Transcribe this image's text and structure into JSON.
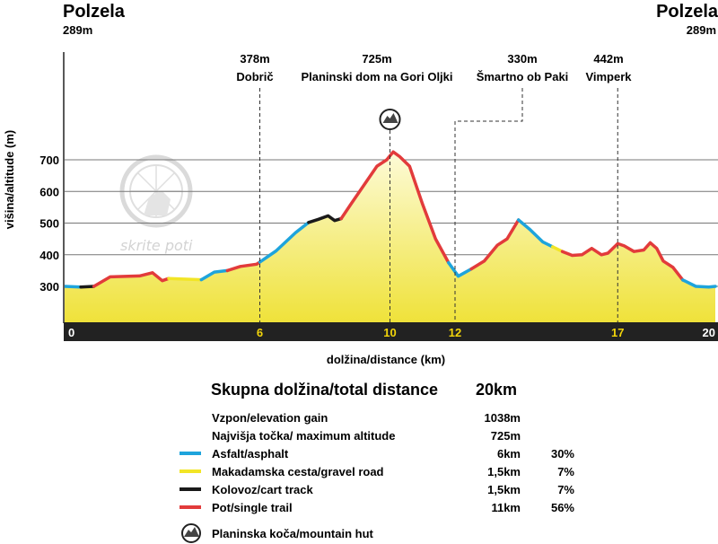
{
  "start": {
    "name": "Polzela",
    "altitude_label": "289m"
  },
  "end": {
    "name": "Polzela",
    "altitude_label": "289m"
  },
  "waypoints": [
    {
      "altitude_label": "378m",
      "name": "Dobrič",
      "km": 6
    },
    {
      "altitude_label": "725m",
      "name": "Planinski dom na Gori Oljki",
      "km": 10,
      "hut": true
    },
    {
      "altitude_label": "330m",
      "name": "Šmartno ob Paki",
      "km": 12
    },
    {
      "altitude_label": "442m",
      "name": "Vimperk",
      "km": 17
    }
  ],
  "logo": {
    "text": "skrite poti"
  },
  "chart_data": {
    "type": "area",
    "xlabel": "dolžina/distance (km)",
    "ylabel": "višina/altitude (m)",
    "xlim": [
      0,
      20
    ],
    "ylim": [
      150,
      1020
    ],
    "yticks": [
      300,
      400,
      500,
      600,
      700
    ],
    "xticks": [
      {
        "value": 0,
        "label": "0",
        "color": "#ffffff"
      },
      {
        "value": 6,
        "label": "6",
        "color": "#f2d40a"
      },
      {
        "value": 10,
        "label": "10",
        "color": "#f2d40a"
      },
      {
        "value": 12,
        "label": "12",
        "color": "#f2d40a"
      },
      {
        "value": 17,
        "label": "17",
        "color": "#f2d40a"
      },
      {
        "value": 20,
        "label": "20",
        "color": "#ffffff"
      }
    ],
    "profile": [
      [
        0,
        300
      ],
      [
        0.5,
        298
      ],
      [
        0.9,
        300
      ],
      [
        1.4,
        330
      ],
      [
        2.3,
        333
      ],
      [
        2.7,
        343
      ],
      [
        3.0,
        318
      ],
      [
        3.2,
        325
      ],
      [
        4.2,
        321
      ],
      [
        4.6,
        345
      ],
      [
        5.0,
        350
      ],
      [
        5.4,
        363
      ],
      [
        5.9,
        370
      ],
      [
        6.5,
        412
      ],
      [
        7.1,
        470
      ],
      [
        7.5,
        502
      ],
      [
        7.8,
        512
      ],
      [
        8.1,
        523
      ],
      [
        8.3,
        508
      ],
      [
        8.5,
        514
      ],
      [
        8.8,
        560
      ],
      [
        9.2,
        620
      ],
      [
        9.6,
        680
      ],
      [
        9.9,
        700
      ],
      [
        10.1,
        725
      ],
      [
        10.3,
        710
      ],
      [
        10.6,
        680
      ],
      [
        11.0,
        560
      ],
      [
        11.4,
        450
      ],
      [
        11.8,
        375
      ],
      [
        12.1,
        332
      ],
      [
        12.5,
        355
      ],
      [
        12.9,
        380
      ],
      [
        13.3,
        430
      ],
      [
        13.6,
        450
      ],
      [
        13.95,
        510
      ],
      [
        14.3,
        480
      ],
      [
        14.7,
        440
      ],
      [
        15.0,
        425
      ],
      [
        15.3,
        410
      ],
      [
        15.6,
        398
      ],
      [
        15.9,
        400
      ],
      [
        16.2,
        420
      ],
      [
        16.5,
        400
      ],
      [
        16.7,
        405
      ],
      [
        17.0,
        435
      ],
      [
        17.2,
        428
      ],
      [
        17.5,
        410
      ],
      [
        17.8,
        415
      ],
      [
        18.0,
        438
      ],
      [
        18.2,
        420
      ],
      [
        18.4,
        380
      ],
      [
        18.7,
        360
      ],
      [
        19.0,
        320
      ],
      [
        19.4,
        300
      ],
      [
        19.8,
        298
      ],
      [
        20,
        300
      ]
    ],
    "segments": [
      {
        "type": "asphalt",
        "from": 0,
        "to": 0.5
      },
      {
        "type": "cart",
        "from": 0.5,
        "to": 0.9
      },
      {
        "type": "trail",
        "from": 0.9,
        "to": 3.2
      },
      {
        "type": "gravel",
        "from": 3.2,
        "to": 4.2
      },
      {
        "type": "asphalt",
        "from": 4.2,
        "to": 5.0
      },
      {
        "type": "trail",
        "from": 5.0,
        "to": 6.0
      },
      {
        "type": "asphalt",
        "from": 6.0,
        "to": 7.5
      },
      {
        "type": "cart",
        "from": 7.5,
        "to": 8.5
      },
      {
        "type": "trail",
        "from": 8.5,
        "to": 11.8
      },
      {
        "type": "asphalt",
        "from": 11.8,
        "to": 12.5
      },
      {
        "type": "trail",
        "from": 12.5,
        "to": 13.95
      },
      {
        "type": "asphalt",
        "from": 13.95,
        "to": 15.0
      },
      {
        "type": "gravel",
        "from": 15.0,
        "to": 15.3
      },
      {
        "type": "trail",
        "from": 15.3,
        "to": 19.0
      },
      {
        "type": "asphalt",
        "from": 19.0,
        "to": 20
      }
    ],
    "colors": {
      "asphalt": "#1ea4dc",
      "gravel": "#f2e526",
      "cart": "#1a1a1a",
      "trail": "#e23b3b",
      "fill_top": "#fdfbd8",
      "fill_bottom": "#efe23a",
      "axis_bar": "#222222"
    }
  },
  "summary": {
    "title": "Skupna dolžina/total distance",
    "total": "20km",
    "stats": [
      {
        "label": "Vzpon/elevation gain",
        "value": "1038m",
        "percent": ""
      },
      {
        "label": "Najvišja točka/ maximum altitude",
        "value": "725m",
        "percent": ""
      }
    ],
    "legend": [
      {
        "type": "asphalt",
        "label": "Asfalt/asphalt",
        "value": "6km",
        "percent": "30%",
        "color": "#1ea4dc"
      },
      {
        "type": "gravel",
        "label": "Makadamska cesta/gravel road",
        "value": "1,5km",
        "percent": "7%",
        "color": "#f2e526"
      },
      {
        "type": "cart",
        "label": "Kolovoz/cart track",
        "value": "1,5km",
        "percent": "7%",
        "color": "#1a1a1a"
      },
      {
        "type": "trail",
        "label": "Pot/single trail",
        "value": "11km",
        "percent": "56%",
        "color": "#e23b3b"
      }
    ],
    "hut_label": "Planinska koča/mountain hut"
  }
}
